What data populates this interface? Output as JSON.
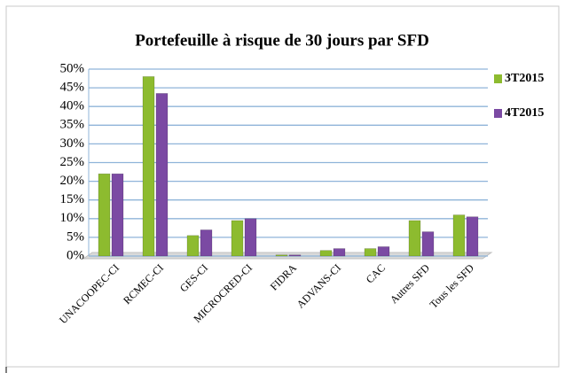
{
  "chart_data": {
    "type": "bar",
    "title": "Portefeuille à risque de 30 jours par SFD",
    "categories": [
      "UNACOOPEC-CI",
      "RCMEC-CI",
      "GES-CI",
      "MICROCRED-CI",
      "FIDRA",
      "ADVANS-CI",
      "CAC",
      "Autres SFD",
      "Tous les SFD"
    ],
    "series": [
      {
        "name": "3T2015",
        "color": "#8dbb2f",
        "values": [
          22,
          48,
          5.5,
          9.5,
          0.3,
          1.5,
          2,
          9.5,
          11
        ]
      },
      {
        "name": "4T2015",
        "color": "#7b4aa3",
        "values": [
          22,
          43.5,
          7,
          10,
          0.3,
          2,
          2.5,
          6.5,
          10.5
        ]
      }
    ],
    "ylim": [
      0,
      50
    ],
    "yticks": [
      {
        "value": 0,
        "label": "0%"
      },
      {
        "value": 5,
        "label": "5%"
      },
      {
        "value": 10,
        "label": "10%"
      },
      {
        "value": 15,
        "label": "15%"
      },
      {
        "value": 20,
        "label": "20%"
      },
      {
        "value": 25,
        "label": "25%"
      },
      {
        "value": 30,
        "label": "30%"
      },
      {
        "value": 35,
        "label": "35%"
      },
      {
        "value": 40,
        "label": "40%"
      },
      {
        "value": 45,
        "label": "45%"
      },
      {
        "value": 50,
        "label": "50%"
      }
    ],
    "grid": true,
    "legend": "right"
  }
}
